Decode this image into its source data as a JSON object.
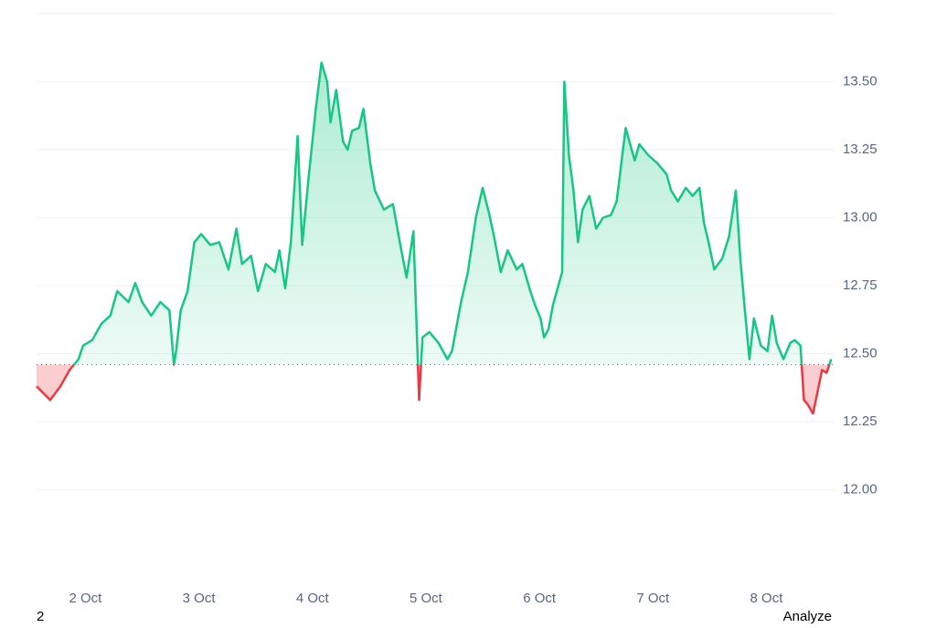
{
  "chart_data": {
    "type": "line",
    "x": [
      1.57,
      1.69,
      1.78,
      1.86,
      1.9,
      1.94,
      1.98,
      2.06,
      2.14,
      2.22,
      2.28,
      2.38,
      2.44,
      2.5,
      2.58,
      2.66,
      2.74,
      2.78,
      2.8,
      2.84,
      2.9,
      2.96,
      3.02,
      3.1,
      3.18,
      3.26,
      3.33,
      3.38,
      3.46,
      3.52,
      3.59,
      3.67,
      3.71,
      3.76,
      3.81,
      3.87,
      3.91,
      3.97,
      4.03,
      4.08,
      4.13,
      4.16,
      4.21,
      4.27,
      4.31,
      4.35,
      4.41,
      4.45,
      4.51,
      4.55,
      4.63,
      4.71,
      4.77,
      4.83,
      4.89,
      4.94,
      4.97,
      5.03,
      5.11,
      5.19,
      5.23,
      5.31,
      5.37,
      5.44,
      5.5,
      5.56,
      5.6,
      5.66,
      5.72,
      5.8,
      5.85,
      5.92,
      5.96,
      6.01,
      6.04,
      6.08,
      6.12,
      6.16,
      6.2,
      6.22,
      6.26,
      6.3,
      6.34,
      6.38,
      6.44,
      6.5,
      6.56,
      6.63,
      6.68,
      6.76,
      6.84,
      6.88,
      6.96,
      7.04,
      7.12,
      7.16,
      7.22,
      7.29,
      7.35,
      7.41,
      7.45,
      7.49,
      7.54,
      7.61,
      7.67,
      7.73,
      7.77,
      7.81,
      7.85,
      7.89,
      7.95,
      8.01,
      8.05,
      8.09,
      8.15,
      8.21,
      8.25,
      8.3,
      8.33,
      8.37,
      8.41,
      8.45,
      8.49,
      8.53,
      8.57
    ],
    "values": [
      12.38,
      12.33,
      12.38,
      12.44,
      12.46,
      12.48,
      12.53,
      12.55,
      12.61,
      12.64,
      12.73,
      12.69,
      12.76,
      12.69,
      12.64,
      12.69,
      12.66,
      12.46,
      12.51,
      12.66,
      12.73,
      12.91,
      12.94,
      12.9,
      12.91,
      12.81,
      12.96,
      12.83,
      12.86,
      12.73,
      12.83,
      12.8,
      12.88,
      12.74,
      12.91,
      13.3,
      12.9,
      13.16,
      13.4,
      13.57,
      13.5,
      13.35,
      13.47,
      13.28,
      13.25,
      13.32,
      13.33,
      13.4,
      13.2,
      13.1,
      13.03,
      13.05,
      12.91,
      12.78,
      12.95,
      12.33,
      12.56,
      12.58,
      12.54,
      12.48,
      12.51,
      12.69,
      12.8,
      13.0,
      13.11,
      13.01,
      12.93,
      12.8,
      12.88,
      12.81,
      12.83,
      12.73,
      12.68,
      12.63,
      12.56,
      12.59,
      12.68,
      12.74,
      12.8,
      13.5,
      13.23,
      13.1,
      12.91,
      13.03,
      13.08,
      12.96,
      13.0,
      13.01,
      13.06,
      13.33,
      13.21,
      13.27,
      13.23,
      13.2,
      13.16,
      13.1,
      13.06,
      13.11,
      13.08,
      13.11,
      12.98,
      12.91,
      12.81,
      12.85,
      12.93,
      13.1,
      12.85,
      12.66,
      12.48,
      12.63,
      12.53,
      12.51,
      12.64,
      12.54,
      12.48,
      12.54,
      12.55,
      12.53,
      12.33,
      12.31,
      12.28,
      12.36,
      12.44,
      12.43,
      12.48
    ],
    "up_color": "#16c784",
    "down_color": "#ea3943",
    "baseline_value": 12.46,
    "xlim": [
      1.57,
      8.6
    ],
    "xticks": [
      {
        "value": 2,
        "label": "2 Oct"
      },
      {
        "value": 3,
        "label": "3 Oct"
      },
      {
        "value": 4,
        "label": "4 Oct"
      },
      {
        "value": 5,
        "label": "5 Oct"
      },
      {
        "value": 6,
        "label": "6 Oct"
      },
      {
        "value": 7,
        "label": "7 Oct"
      },
      {
        "value": 8,
        "label": "8 Oct"
      }
    ],
    "ylim": [
      11.7,
      13.75
    ],
    "yticks": [
      {
        "value": 12,
        "label": "12.00"
      },
      {
        "value": 12.25,
        "label": "12.25"
      },
      {
        "value": 12.5,
        "label": "12.50"
      },
      {
        "value": 12.75,
        "label": "12.75"
      },
      {
        "value": 13,
        "label": "13.00"
      },
      {
        "value": 13.25,
        "label": "13.25"
      },
      {
        "value": 13.5,
        "label": "13.50"
      }
    ],
    "grid": true
  },
  "footer": {
    "left": "2",
    "right": "Analyze"
  }
}
